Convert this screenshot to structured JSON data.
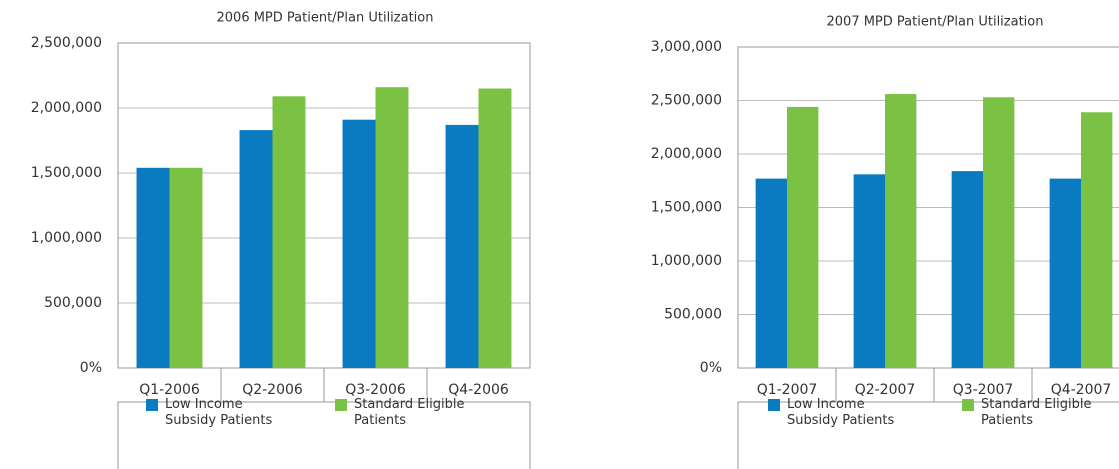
{
  "chart_data": [
    {
      "type": "bar",
      "title": "2006 MPD Patient/Plan Utilization",
      "categories": [
        "Q1-2006",
        "Q2-2006",
        "Q3-2006",
        "Q4-2006"
      ],
      "series": [
        {
          "name": "Low Income Subsidy Patients",
          "color": "#0a7bc1",
          "values": [
            1540000,
            1830000,
            1910000,
            1870000
          ]
        },
        {
          "name": "Standard Eligible Patients",
          "color": "#7bc143",
          "values": [
            1540000,
            2090000,
            2160000,
            2150000
          ]
        }
      ],
      "ylim": [
        0,
        2500000
      ],
      "yticks": [
        {
          "value": 0,
          "label": "0%"
        },
        {
          "value": 500000,
          "label": "500,000"
        },
        {
          "value": 1000000,
          "label": "1,000,000"
        },
        {
          "value": 1500000,
          "label": "1,500,000"
        },
        {
          "value": 2000000,
          "label": "2,000,000"
        },
        {
          "value": 2500000,
          "label": "2,500,000"
        }
      ],
      "grid": true
    },
    {
      "type": "bar",
      "title": "2007 MPD Patient/Plan Utilization",
      "categories": [
        "Q1-2007",
        "Q2-2007",
        "Q3-2007",
        "Q4-2007"
      ],
      "series": [
        {
          "name": "Low Income Subsidy Patients",
          "color": "#0a7bc1",
          "values": [
            1770000,
            1810000,
            1840000,
            1770000
          ]
        },
        {
          "name": "Standard Eligible Patients",
          "color": "#7bc143",
          "values": [
            2440000,
            2560000,
            2530000,
            2390000
          ]
        }
      ],
      "ylim": [
        0,
        3000000
      ],
      "yticks": [
        {
          "value": 0,
          "label": "0%"
        },
        {
          "value": 500000,
          "label": "500,000"
        },
        {
          "value": 1000000,
          "label": "1,000,000"
        },
        {
          "value": 1500000,
          "label": "1,500,000"
        },
        {
          "value": 2000000,
          "label": "2,000,000"
        },
        {
          "value": 2500000,
          "label": "2,500,000"
        },
        {
          "value": 3000000,
          "label": "3,000,000"
        }
      ],
      "grid": true
    }
  ]
}
